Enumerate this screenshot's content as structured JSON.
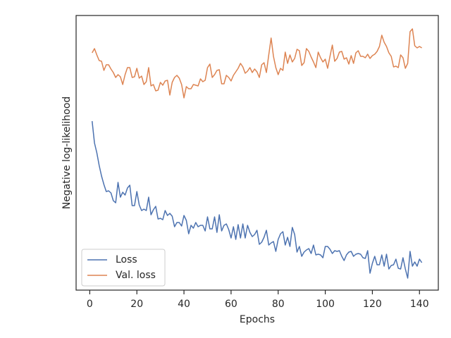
{
  "chart_data": {
    "type": "line",
    "xlabel": "Epochs",
    "ylabel": "Negative log-likelihood",
    "x": [
      1,
      2,
      3,
      4,
      5,
      6,
      7,
      8,
      9,
      10,
      11,
      12,
      13,
      14,
      15,
      16,
      17,
      18,
      19,
      20,
      21,
      22,
      23,
      24,
      25,
      26,
      27,
      28,
      29,
      30,
      31,
      32,
      33,
      34,
      35,
      36,
      37,
      38,
      39,
      40,
      41,
      42,
      43,
      44,
      45,
      46,
      47,
      48,
      49,
      50,
      51,
      52,
      53,
      54,
      55,
      56,
      57,
      58,
      59,
      60,
      61,
      62,
      63,
      64,
      65,
      66,
      67,
      68,
      69,
      70,
      71,
      72,
      73,
      74,
      75,
      76,
      77,
      78,
      79,
      80,
      81,
      82,
      83,
      84,
      85,
      86,
      87,
      88,
      89,
      90,
      91,
      92,
      93,
      94,
      95,
      96,
      97,
      98,
      99,
      100,
      101,
      102,
      103,
      104,
      105,
      106,
      107,
      108,
      109,
      110,
      111,
      112,
      113,
      114,
      115,
      116,
      117,
      118,
      119,
      120,
      121,
      122,
      123,
      124,
      125,
      126,
      127,
      128,
      129,
      130,
      131,
      132,
      133,
      134,
      135,
      136,
      137,
      138,
      139,
      140,
      141
    ],
    "series": [
      {
        "name": "Loss",
        "color": "#4c72b0",
        "values": [
          240,
          209,
          195,
          177,
          162,
          150,
          140,
          141,
          138,
          127,
          124,
          153,
          132,
          139,
          135,
          145,
          149,
          120,
          120,
          140,
          121,
          113,
          115,
          113,
          132,
          107,
          114,
          119,
          101,
          102,
          100,
          113,
          106,
          109,
          105,
          90,
          96,
          96,
          91,
          106,
          99,
          80,
          92,
          88,
          96,
          90,
          92,
          92,
          84,
          104,
          87,
          87,
          104,
          82,
          107,
          84,
          92,
          94,
          86,
          74,
          90,
          72,
          93,
          74,
          94,
          74,
          92,
          82,
          76,
          79,
          85,
          65,
          68,
          75,
          85,
          64,
          67,
          69,
          55,
          72,
          80,
          83,
          64,
          75,
          62,
          89,
          79,
          54,
          62,
          48,
          54,
          57,
          59,
          52,
          64,
          50,
          51,
          50,
          46,
          62,
          62,
          58,
          52,
          56,
          55,
          56,
          48,
          42,
          50,
          54,
          55,
          48,
          51,
          52,
          51,
          46,
          45,
          56,
          24,
          38,
          48,
          36,
          36,
          50,
          34,
          51,
          30,
          35,
          36,
          44,
          31,
          30,
          46,
          30,
          17,
          55,
          34,
          40,
          34,
          44,
          39
        ]
      },
      {
        "name": "Val. loss",
        "color": "#dd8452",
        "values": [
          337,
          343,
          334,
          326,
          325,
          312,
          320,
          320,
          314,
          309,
          302,
          306,
          303,
          292,
          306,
          316,
          316,
          302,
          303,
          315,
          301,
          304,
          292,
          296,
          316,
          290,
          292,
          283,
          284,
          295,
          291,
          297,
          298,
          277,
          295,
          302,
          305,
          301,
          292,
          273,
          289,
          286,
          286,
          292,
          291,
          290,
          300,
          296,
          298,
          316,
          321,
          302,
          306,
          312,
          313,
          293,
          293,
          305,
          302,
          297,
          305,
          310,
          315,
          322,
          317,
          308,
          311,
          316,
          309,
          314,
          310,
          302,
          320,
          323,
          309,
          334,
          358,
          332,
          316,
          306,
          315,
          312,
          338,
          322,
          334,
          324,
          329,
          342,
          340,
          319,
          323,
          343,
          339,
          331,
          324,
          316,
          338,
          330,
          324,
          328,
          315,
          332,
          348,
          325,
          329,
          338,
          339,
          328,
          330,
          321,
          333,
          322,
          337,
          340,
          332,
          332,
          330,
          335,
          329,
          333,
          335,
          339,
          346,
          362,
          352,
          346,
          337,
          332,
          317,
          318,
          316,
          334,
          330,
          315,
          322,
          367,
          371,
          347,
          344,
          346,
          344
        ]
      }
    ],
    "xlim": [
      -5.8,
      148
    ],
    "xticks": [
      0,
      20,
      40,
      60,
      80,
      100,
      120,
      140
    ],
    "ylim": [
      0,
      390
    ],
    "grid": false,
    "legend": "lower left"
  }
}
